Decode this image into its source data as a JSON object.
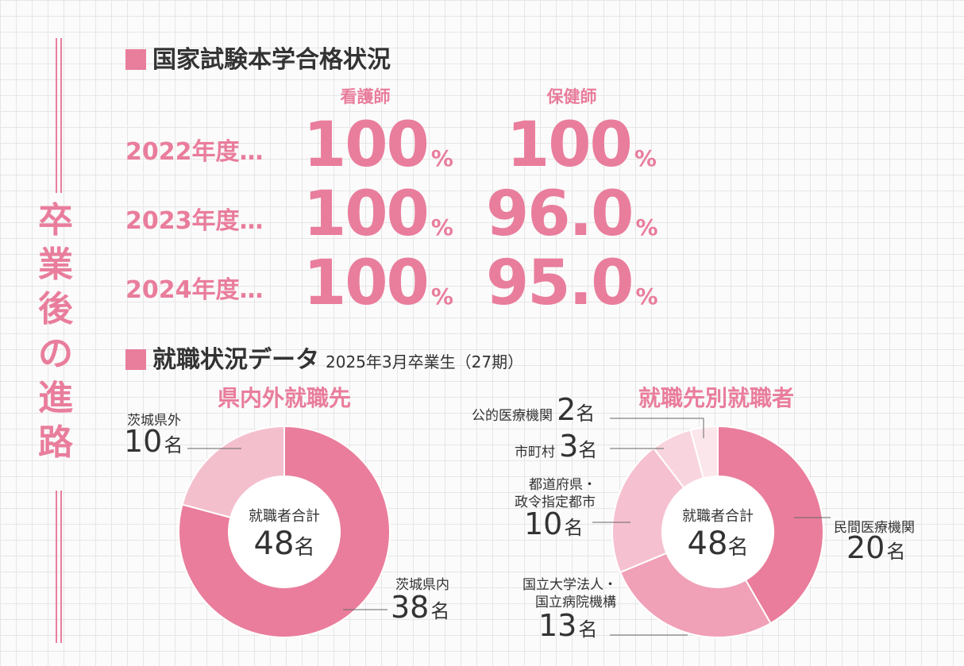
{
  "side_title": "卒業後の進路",
  "exam": {
    "heading": "国家試験本学合格状況",
    "columns": [
      "看護師",
      "保健師"
    ],
    "rows": [
      {
        "year": "2022年度…",
        "nurse": "100",
        "public_health": "100"
      },
      {
        "year": "2023年度…",
        "nurse": "100",
        "public_health": "96.0"
      },
      {
        "year": "2024年度…",
        "nurse": "100",
        "public_health": "95.0"
      }
    ],
    "unit": "%"
  },
  "employment": {
    "heading": "就職状況データ",
    "subheading": "2025年3月卒業生（27期）"
  },
  "colors": {
    "accent": "#e97d9c",
    "dark": "#333333"
  },
  "chart_data": [
    {
      "type": "pie",
      "title": "県内外就職先",
      "center_label": "就職者合計",
      "center_value": "48",
      "unit": "名",
      "categories": [
        "茨城県内",
        "茨城県外"
      ],
      "values": [
        38,
        10
      ],
      "colors": [
        "#ea7d9b",
        "#f4bfcd"
      ]
    },
    {
      "type": "pie",
      "title": "就職先別就職者",
      "center_label": "就職者合計",
      "center_value": "48",
      "unit": "名",
      "categories": [
        "民間医療機関",
        "国立大学法人・国立病院機構",
        "都道府県・政令指定都市",
        "市町村",
        "公的医療機関"
      ],
      "label_lines": [
        [
          "民間医療機関"
        ],
        [
          "国立大学法人・",
          "国立病院機構"
        ],
        [
          "都道府県・",
          "政令指定都市"
        ],
        [
          "市町村"
        ],
        [
          "公的医療機関"
        ]
      ],
      "values": [
        20,
        13,
        10,
        3,
        2
      ],
      "colors": [
        "#ea7d9b",
        "#f0a0b7",
        "#f5c0cf",
        "#f8d5de",
        "#fbe6ec"
      ]
    }
  ]
}
